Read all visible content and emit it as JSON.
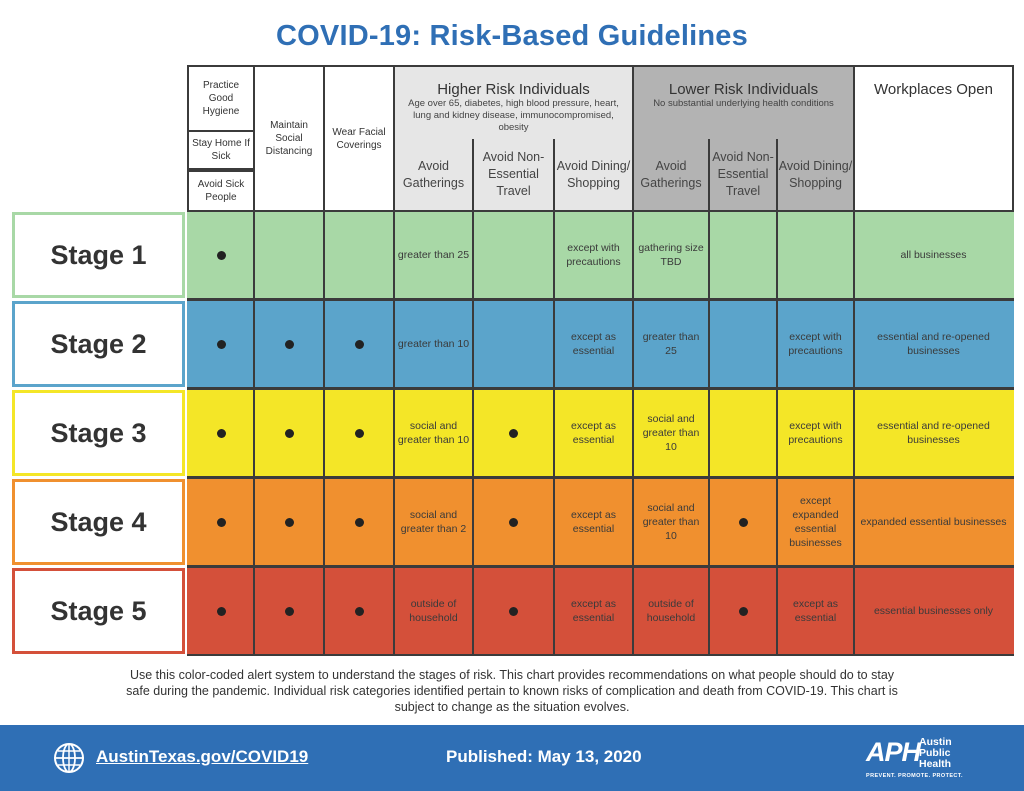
{
  "title": "COVID-19: Risk-Based Guidelines",
  "headers": {
    "practice_hygiene": "Practice Good Hygiene",
    "stay_home": "Stay Home If Sick",
    "avoid_sick": "Avoid Sick People",
    "distancing": "Maintain Social Distancing",
    "coverings": "Wear Facial Coverings",
    "higher_risk": {
      "title": "Higher Risk Individuals",
      "subtitle": "Age over 65, diabetes, high blood pressure, heart, lung and kidney disease, immunocompromised, obesity",
      "sub1": "Avoid Gatherings",
      "sub2": "Avoid Non-Essential Travel",
      "sub3": "Avoid Dining/ Shopping"
    },
    "lower_risk": {
      "title": "Lower Risk Individuals",
      "subtitle": "No substantial underlying health conditions",
      "sub1": "Avoid Gatherings",
      "sub2": "Avoid Non-Essential Travel",
      "sub3": "Avoid Dining/ Shopping"
    },
    "workplaces": "Workplaces Open"
  },
  "stages": [
    {
      "label": "Stage 1",
      "color": "#a8d8a6",
      "hr_gather": "greater than 25",
      "hr_dining": "except with precautions",
      "lr_gather": "gathering size TBD",
      "lr_dining": "",
      "workplaces": "all businesses"
    },
    {
      "label": "Stage 2",
      "color": "#5ba4cb",
      "hr_gather": "greater than 10",
      "hr_dining": "except as essential",
      "lr_gather": "greater than 25",
      "lr_dining": "except with precautions",
      "workplaces": "essential and re-opened businesses"
    },
    {
      "label": "Stage 3",
      "color": "#f4e627",
      "hr_gather": "social and greater than 10",
      "hr_dining": "except as essential",
      "lr_gather": "social and greater than 10",
      "lr_dining": "except with precautions",
      "workplaces": "essential and re-opened businesses"
    },
    {
      "label": "Stage 4",
      "color": "#f0902f",
      "hr_gather": "social and greater than 2",
      "hr_dining": "except as essential",
      "lr_gather": "social and greater than 10",
      "lr_dining": "except expanded essential businesses",
      "workplaces": "expanded essential businesses"
    },
    {
      "label": "Stage 5",
      "color": "#d4503a",
      "hr_gather": "outside of household",
      "hr_dining": "except as essential",
      "lr_gather": "outside of household",
      "lr_dining": "except as essential",
      "workplaces": "essential businesses only"
    }
  ],
  "note": "Use this color-coded alert system to understand the stages of risk. This chart provides recommendations on what people should do to stay safe during the pandemic. Individual risk categories identified pertain to known risks of complication and death from COVID-19. This chart is subject to change as the situation evolves.",
  "footer": {
    "url": "AustinTexas.gov/COVID19",
    "published": "Published: May 13, 2020",
    "logo_letters": "APH",
    "logo_name": "Austin Public Health",
    "logo_tagline": "PREVENT. PROMOTE. PROTECT.",
    "color": "#2f6fb5"
  }
}
